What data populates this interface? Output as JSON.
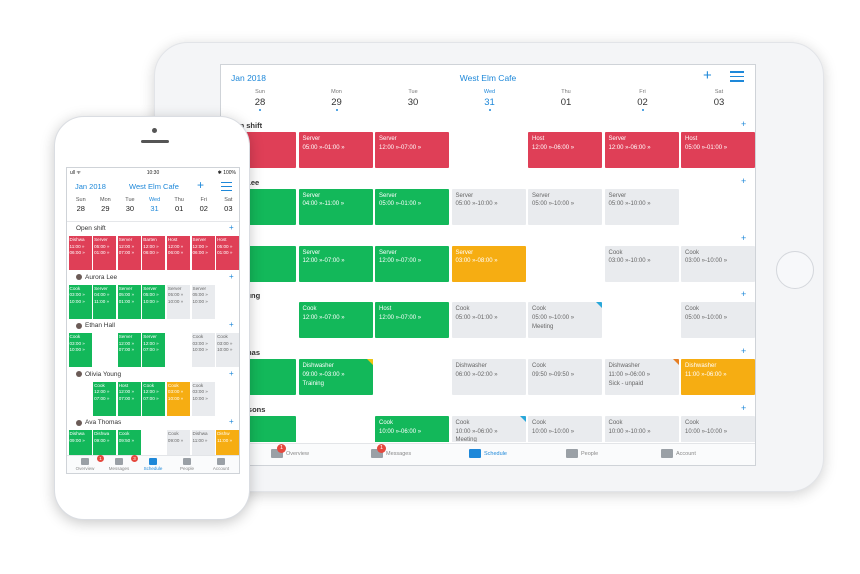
{
  "colors": {
    "accent": "#1e88d9",
    "red": "#df3f57",
    "green": "#13b85a",
    "grey": "#e9ebee",
    "orange": "#f6ad12"
  },
  "tablet": {
    "month": "Jan 2018",
    "venue": "West Elm Cafe",
    "plus_icon": "plus-icon",
    "filter_icon": "filter-icon",
    "days": [
      {
        "name": "Sun",
        "num": "28",
        "dot": true
      },
      {
        "name": "Mon",
        "num": "29",
        "dot": true
      },
      {
        "name": "Tue",
        "num": "30",
        "dot": false
      },
      {
        "name": "Wed",
        "num": "31",
        "dot": true,
        "active": true
      },
      {
        "name": "Thu",
        "num": "01",
        "dot": false
      },
      {
        "name": "Fri",
        "num": "02",
        "dot": true
      },
      {
        "name": "Sat",
        "num": "03",
        "dot": false
      }
    ],
    "sections": [
      {
        "name": "Open shift",
        "cells": [
          {
            "col": 0,
            "color": "red",
            "role": "ver",
            "time": "5:00 »"
          },
          {
            "col": 1,
            "color": "red",
            "role": "Server",
            "time": "05:00 »-01:00 »"
          },
          {
            "col": 2,
            "color": "red",
            "role": "Server",
            "time": "12:00 »-07:00 »"
          },
          {
            "col": 4,
            "color": "red",
            "role": "Host",
            "time": "12:00 »-06:00 »"
          },
          {
            "col": 5,
            "color": "red",
            "role": "Server",
            "time": "12:00 »-06:00 »"
          },
          {
            "col": 6,
            "color": "red",
            "role": "Host",
            "time": "05:00 »-01:00 »"
          }
        ]
      },
      {
        "name": "urora Lee",
        "cells": [
          {
            "col": 0,
            "color": "green",
            "role": "",
            "time": "0:00 »"
          },
          {
            "col": 1,
            "color": "green",
            "role": "Server",
            "time": "04:00 »-11:00 »"
          },
          {
            "col": 2,
            "color": "green",
            "role": "Server",
            "time": "05:00 »-01:00 »"
          },
          {
            "col": 3,
            "color": "grey",
            "role": "Server",
            "time": "05:00 »-10:00 »"
          },
          {
            "col": 4,
            "color": "grey",
            "role": "Server",
            "time": "05:00 »-10:00 »"
          },
          {
            "col": 5,
            "color": "grey",
            "role": "Server",
            "time": "05:00 »-10:00 »"
          }
        ]
      },
      {
        "name": "an Hall",
        "cells": [
          {
            "col": 0,
            "color": "green",
            "role": "",
            "time": "0:00 »"
          },
          {
            "col": 1,
            "color": "green",
            "role": "Server",
            "time": "12:00 »-07:00 »"
          },
          {
            "col": 2,
            "color": "green",
            "role": "Server",
            "time": "12:00 »-07:00 »"
          },
          {
            "col": 3,
            "color": "orange",
            "role": "Server",
            "time": "03:00 »-08:00 »"
          },
          {
            "col": 5,
            "color": "grey",
            "role": "Cook",
            "time": "03:00 »-10:00 »"
          },
          {
            "col": 6,
            "color": "grey",
            "role": "Cook",
            "time": "03:00 »-10:00 »"
          }
        ]
      },
      {
        "name": "via Young",
        "cells": [
          {
            "col": 1,
            "color": "green",
            "role": "Cook",
            "time": "12:00 »-07:00 »"
          },
          {
            "col": 2,
            "color": "green",
            "role": "Host",
            "time": "12:00 »-07:00 »"
          },
          {
            "col": 3,
            "color": "grey",
            "role": "Cook",
            "time": "05:00 »-01:00 »"
          },
          {
            "col": 4,
            "color": "grey",
            "role": "Cook",
            "time": "05:00 »-10:00 »",
            "note": "Meeting",
            "flag": "b"
          },
          {
            "col": 6,
            "color": "grey",
            "role": "Cook",
            "time": "05:00 »-10:00 »"
          }
        ]
      },
      {
        "name": "a Thomas",
        "cells": [
          {
            "col": 0,
            "color": "green",
            "role": "er",
            "time": "0:00 »"
          },
          {
            "col": 1,
            "color": "green",
            "role": "Dishwasher",
            "time": "09:00 »-03:00 »",
            "note": "Training",
            "flag": "y"
          },
          {
            "col": 3,
            "color": "grey",
            "role": "Dishwasher",
            "time": "06:00 »-02:00 »"
          },
          {
            "col": 4,
            "color": "grey",
            "role": "Cook",
            "time": "09:50 »-09:50 »"
          },
          {
            "col": 5,
            "color": "grey",
            "role": "Dishwasher",
            "time": "11:00 »-06:00 »",
            "note": "Sick - unpaid",
            "flag": "o"
          },
          {
            "col": 6,
            "color": "orange",
            "role": "Dishwasher",
            "time": "11:00 »-06:00 »"
          }
        ]
      },
      {
        "name": "ad Parsons",
        "cells": [
          {
            "col": 0,
            "color": "green",
            "role": "",
            "time": "6:00 »"
          },
          {
            "col": 2,
            "color": "green",
            "role": "Cook",
            "time": "10:00 »-06:00 »"
          },
          {
            "col": 3,
            "color": "grey",
            "role": "Cook",
            "time": "10:00 »-06:00 »",
            "note": "Meeting",
            "flag": "b"
          },
          {
            "col": 4,
            "color": "grey",
            "role": "Cook",
            "time": "10:00 »-10:00 »"
          },
          {
            "col": 5,
            "color": "grey",
            "role": "Cook",
            "time": "10:00 »-10:00 »"
          },
          {
            "col": 6,
            "color": "grey",
            "role": "Cook",
            "time": "10:00 »-10:00 »"
          }
        ]
      }
    ],
    "tabs": [
      {
        "label": "Overview",
        "icon": "overview-icon",
        "badge": "1"
      },
      {
        "label": "Messages",
        "icon": "messages-icon",
        "badge": "1"
      },
      {
        "label": "Schedule",
        "icon": "schedule-icon",
        "active": true
      },
      {
        "label": "People",
        "icon": "people-icon"
      },
      {
        "label": "Account",
        "icon": "account-icon"
      }
    ]
  },
  "phone": {
    "status_left": "ull ᯤ",
    "status_time": "10:30",
    "status_right": "✱ 100%",
    "month": "Jan 2018",
    "venue": "West Elm Cafe",
    "plus_icon": "plus-icon",
    "filter_icon": "filter-icon",
    "days": [
      {
        "name": "Sun",
        "num": "28"
      },
      {
        "name": "Mon",
        "num": "29"
      },
      {
        "name": "Tue",
        "num": "30"
      },
      {
        "name": "Wed",
        "num": "31",
        "active": true
      },
      {
        "name": "Thu",
        "num": "01"
      },
      {
        "name": "Fri",
        "num": "02"
      },
      {
        "name": "Sat",
        "num": "03"
      }
    ],
    "sections": [
      {
        "name": "Open shift",
        "avatar": false,
        "cells": [
          {
            "col": 0,
            "color": "red",
            "role": "Dishwa",
            "t1": "11:00 »",
            "t2": "06:00 »"
          },
          {
            "col": 1,
            "color": "red",
            "role": "Server",
            "t1": "05:00 »",
            "t2": "01:00 »"
          },
          {
            "col": 2,
            "color": "red",
            "role": "Server",
            "t1": "12:00 »",
            "t2": "07:00 »"
          },
          {
            "col": 3,
            "color": "red",
            "role": "Barten",
            "t1": "12:00 »",
            "t2": "06:00 »"
          },
          {
            "col": 4,
            "color": "red",
            "role": "Host",
            "t1": "12:00 »",
            "t2": "06:00 »"
          },
          {
            "col": 5,
            "color": "red",
            "role": "Server",
            "t1": "12:00 »",
            "t2": "06:00 »"
          },
          {
            "col": 6,
            "color": "red",
            "role": "Host",
            "t1": "05:00 »",
            "t2": "01:00 »"
          }
        ]
      },
      {
        "name": "Aurora Lee",
        "avatar": true,
        "cells": [
          {
            "col": 0,
            "color": "green",
            "role": "Cook",
            "t1": "03:00 »",
            "t2": "10:00 »"
          },
          {
            "col": 1,
            "color": "green",
            "role": "Server",
            "t1": "04:00 »",
            "t2": "11:00 »"
          },
          {
            "col": 2,
            "color": "green",
            "role": "Server",
            "t1": "05:00 »",
            "t2": "01:00 »"
          },
          {
            "col": 3,
            "color": "green",
            "role": "Server",
            "t1": "05:00 »",
            "t2": "10:00 »"
          },
          {
            "col": 4,
            "color": "grey",
            "role": "Server",
            "t1": "05:00 »",
            "t2": "10:00 »"
          },
          {
            "col": 5,
            "color": "grey",
            "role": "Server",
            "t1": "05:00 »",
            "t2": "10:00 »"
          }
        ]
      },
      {
        "name": "Ethan Hall",
        "avatar": true,
        "cells": [
          {
            "col": 0,
            "color": "green",
            "role": "Cook",
            "t1": "03:00 »",
            "t2": "10:00 »"
          },
          {
            "col": 2,
            "color": "green",
            "role": "Server",
            "t1": "12:00 »",
            "t2": "07:00 »"
          },
          {
            "col": 3,
            "color": "green",
            "role": "Server",
            "t1": "12:00 »",
            "t2": "07:00 »"
          },
          {
            "col": 5,
            "color": "grey",
            "role": "Cook",
            "t1": "03:00 »",
            "t2": "10:00 »"
          },
          {
            "col": 6,
            "color": "grey",
            "role": "Cook",
            "t1": "03:00 »",
            "t2": "10:00 »"
          }
        ]
      },
      {
        "name": "Olivia Young",
        "avatar": true,
        "cells": [
          {
            "col": 1,
            "color": "green",
            "role": "Cook",
            "t1": "12:00 »",
            "t2": "07:00 »"
          },
          {
            "col": 2,
            "color": "green",
            "role": "Host",
            "t1": "12:00 »",
            "t2": "07:00 »"
          },
          {
            "col": 3,
            "color": "green",
            "role": "Cook",
            "t1": "12:00 »",
            "t2": "07:00 »"
          },
          {
            "col": 4,
            "color": "orange",
            "role": "Cook",
            "t1": "03:00 »",
            "t2": "10:00 »"
          },
          {
            "col": 5,
            "color": "grey",
            "role": "Cook",
            "t1": "03:00 »",
            "t2": "10:00 »"
          }
        ]
      },
      {
        "name": "Ava Thomas",
        "avatar": true,
        "cells": [
          {
            "col": 0,
            "color": "green",
            "role": "Dishwa",
            "t1": "09:00 »",
            "t2": ""
          },
          {
            "col": 1,
            "color": "green",
            "role": "Dishwa",
            "t1": "09:00 »",
            "t2": ""
          },
          {
            "col": 2,
            "color": "green",
            "role": "Cook",
            "t1": "09:50 »",
            "t2": ""
          },
          {
            "col": 4,
            "color": "grey",
            "role": "Cook",
            "t1": "09:00 »",
            "t2": ""
          },
          {
            "col": 5,
            "color": "grey",
            "role": "Dishwa",
            "t1": "11:00 »",
            "t2": ""
          },
          {
            "col": 6,
            "color": "orange",
            "role": "Dishw",
            "t1": "11:00 »",
            "t2": ""
          }
        ]
      }
    ],
    "tabs": [
      {
        "label": "Overview",
        "icon": "overview-icon",
        "badge": "1"
      },
      {
        "label": "Messages",
        "icon": "messages-icon",
        "badge": "3"
      },
      {
        "label": "Schedule",
        "icon": "schedule-icon",
        "active": true
      },
      {
        "label": "People",
        "icon": "people-icon"
      },
      {
        "label": "Account",
        "icon": "account-icon"
      }
    ]
  }
}
